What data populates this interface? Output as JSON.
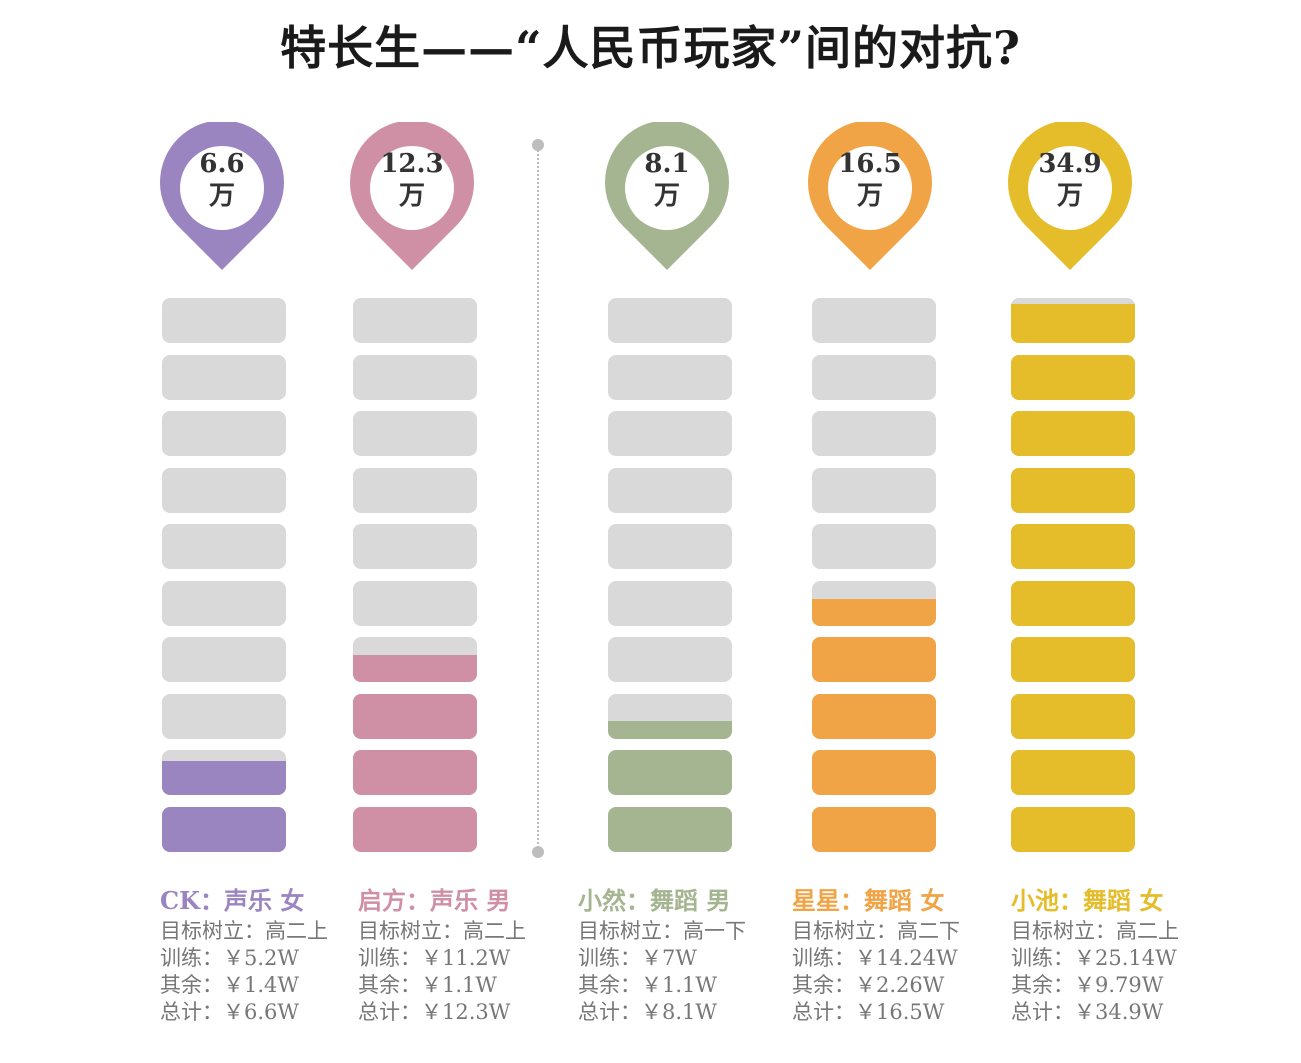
{
  "title": "特长生——“人民币玩家”间的对抗?",
  "chart_data": {
    "type": "bar",
    "unit": "万",
    "max_blocks": 10,
    "blocks_per_wan": 3.5,
    "series": [
      {
        "total": "6.6",
        "unit": "万",
        "value": 6.6,
        "color": "#9b85c1",
        "head": "CK：声乐 女",
        "goal": "目标树立：高二上",
        "training": "训练：￥5.2W",
        "other": "其余：￥1.4W",
        "sum": "总计：￥6.6W"
      },
      {
        "total": "12.3",
        "unit": "万",
        "value": 12.3,
        "color": "#cf8fa5",
        "head": "启方：声乐 男",
        "goal": "目标树立：高二上",
        "training": "训练：￥11.2W",
        "other": "其余：￥1.1W",
        "sum": "总计：￥12.3W"
      },
      {
        "total": "8.1",
        "unit": "万",
        "value": 8.1,
        "color": "#a5b591",
        "head": "小然：舞蹈 男",
        "goal": "目标树立：高一下",
        "training": "训练：￥7W",
        "other": "其余：￥1.1W",
        "sum": "总计：￥8.1W"
      },
      {
        "total": "16.5",
        "unit": "万",
        "value": 16.5,
        "color": "#f0a445",
        "head": "星星：舞蹈 女",
        "goal": "目标树立：高二下",
        "training": "训练：￥14.24W",
        "other": "其余：￥2.26W",
        "sum": "总计：￥16.5W"
      },
      {
        "total": "34.9",
        "unit": "万",
        "value": 34.9,
        "color": "#e5bc2a",
        "head": "小池：舞蹈 女",
        "goal": "目标树立：高二上",
        "training": "训练：￥25.14W",
        "other": "其余：￥9.79W",
        "sum": "总计：￥34.9W"
      }
    ],
    "empty_color": "#d9d9d9"
  }
}
